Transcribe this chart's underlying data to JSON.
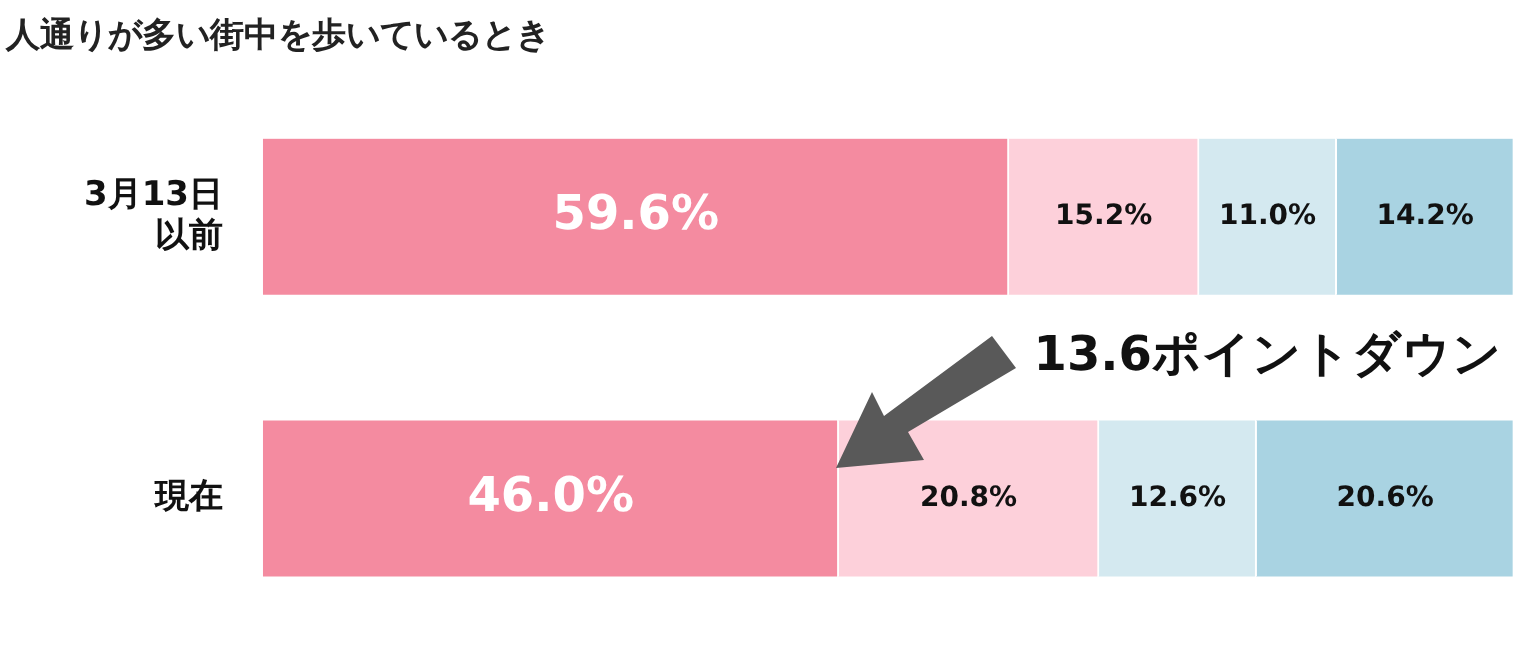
{
  "chart_data": {
    "type": "bar",
    "orientation": "horizontal",
    "stacked": true,
    "title": "人通りが多い街中を歩いているとき",
    "categories": [
      "3月13日以前",
      "現在"
    ],
    "series": [
      {
        "color": "#f48ba0",
        "values": [
          59.6,
          46.0
        ],
        "value_labels": [
          "59.6%",
          "46.0%"
        ]
      },
      {
        "color": "#fdd0da",
        "values": [
          15.2,
          20.8
        ],
        "value_labels": [
          "15.2%",
          "20.8%"
        ]
      },
      {
        "color": "#d4e9f0",
        "values": [
          11.0,
          12.6
        ],
        "value_labels": [
          "11.0%",
          "12.6%"
        ]
      },
      {
        "color": "#a9d3e2",
        "values": [
          14.2,
          20.6
        ],
        "value_labels": [
          "14.2%",
          "20.6%"
        ]
      }
    ],
    "xlim": [
      0,
      100
    ],
    "tick_labels": "y",
    "grid": false,
    "legend": false,
    "annotations": [
      "13.6ポイントダウン"
    ]
  }
}
